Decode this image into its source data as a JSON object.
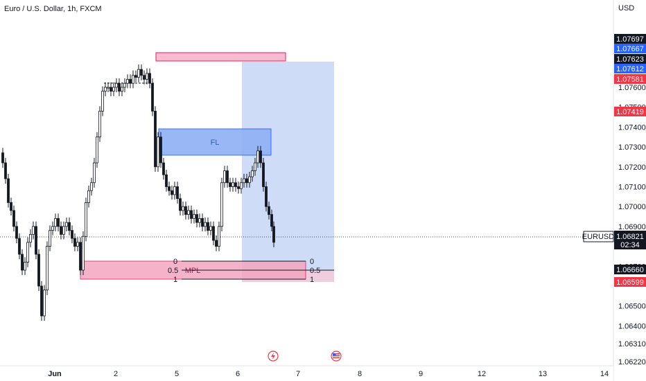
{
  "symbol_title": "Euro / U.S. Dollar, 1h, FXCM",
  "chart_data": {
    "type": "candlestick",
    "currency": "USD",
    "y_ticks": [
      "1.07600",
      "1.07500",
      "1.07400",
      "1.07300",
      "1.07200",
      "1.07100",
      "1.07000",
      "1.06900",
      "1.06700",
      "1.06500",
      "1.06400",
      "1.06310",
      "1.06220"
    ],
    "y_ticks_partial_top": [
      "1.07800",
      "1.07700"
    ],
    "x_ticks": [
      "Jun",
      "2",
      "5",
      "6",
      "7",
      "8",
      "9",
      "12",
      "13",
      "14"
    ],
    "price_badges": [
      {
        "value": "1.07697",
        "color": "#131722"
      },
      {
        "value": "1.07667",
        "color": "#2962ff"
      },
      {
        "value": "1.07623",
        "color": "#131722"
      },
      {
        "value": "1.07612",
        "color": "#2962ff"
      },
      {
        "value": "1.07581",
        "color": "#f23645"
      },
      {
        "value": "1.07419",
        "color": "#f23645"
      },
      {
        "value": "1.06660",
        "color": "#131722"
      },
      {
        "value": "1.06599",
        "color": "#f23645"
      }
    ],
    "last_price": {
      "symbol": "EURUSD",
      "value": "1.06821",
      "countdown": "02:34"
    },
    "zones": [
      {
        "label": "FL",
        "kind": "blue-box"
      },
      {
        "label": "MPL",
        "kind": "pink-box"
      }
    ],
    "fib_levels": [
      "0",
      "0.5",
      "1"
    ],
    "colors": {
      "up": "#131722",
      "down": "#131722",
      "pink": "#f48fb1",
      "blue": "#4d7cf0",
      "accent_red": "#f23645",
      "accent_blue": "#2962ff"
    },
    "event_icons": [
      "lightning-icon",
      "us-flag-icon"
    ]
  }
}
